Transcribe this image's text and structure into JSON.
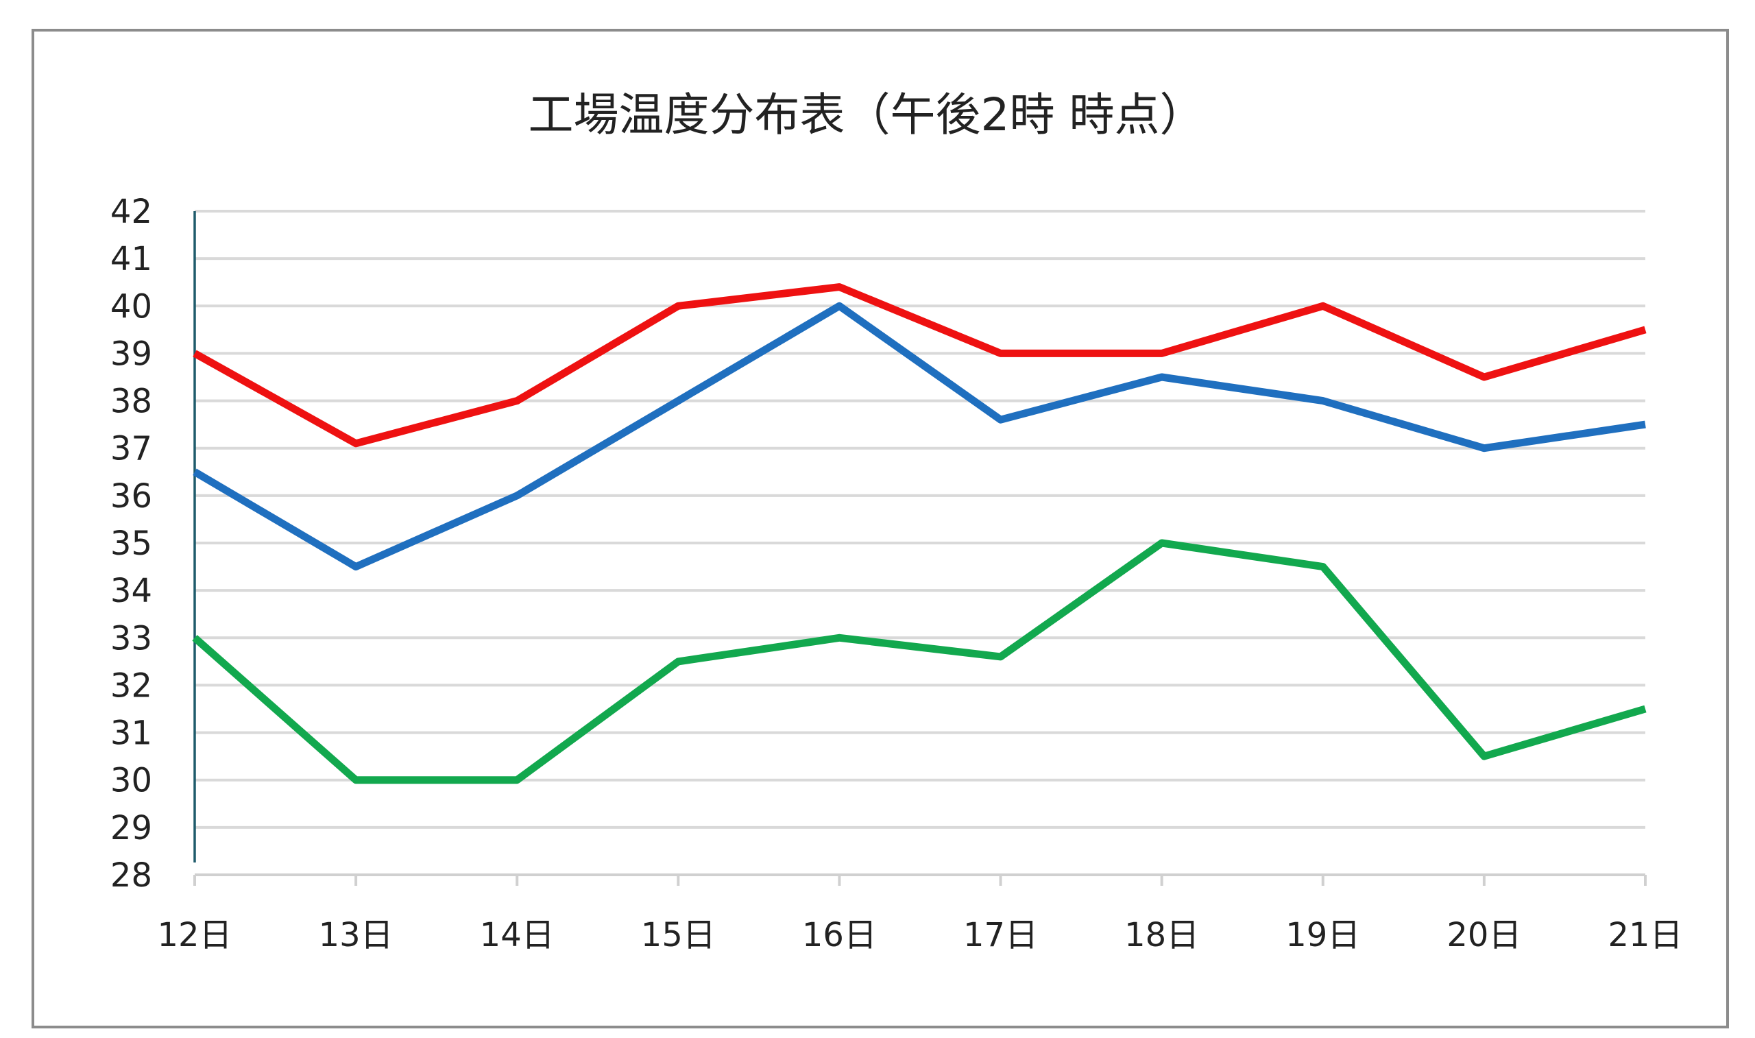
{
  "chart_data": {
    "type": "line",
    "title": "工場温度分布表（午後2時 時点）",
    "xlabel": "",
    "ylabel": "",
    "categories": [
      "12日",
      "13日",
      "14日",
      "15日",
      "16日",
      "17日",
      "18日",
      "19日",
      "20日",
      "21日"
    ],
    "ylim": [
      28,
      42
    ],
    "yticks": [
      "28",
      "29",
      "30",
      "31",
      "32",
      "33",
      "34",
      "35",
      "36",
      "37",
      "38",
      "39",
      "40",
      "41",
      "42"
    ],
    "grid": true,
    "legend": "none",
    "series": [
      {
        "color": "#ee1111",
        "values": [
          39,
          37.1,
          38,
          40,
          40.4,
          39,
          39,
          40,
          38.5,
          39.5
        ]
      },
      {
        "color": "#1f6fbf",
        "values": [
          36.5,
          34.5,
          36,
          38,
          40,
          37.6,
          38.5,
          38,
          37,
          37.5
        ]
      },
      {
        "color": "#12a84e",
        "values": [
          33,
          30,
          30,
          32.5,
          33,
          32.6,
          35,
          34.5,
          30.5,
          31.5
        ]
      }
    ]
  }
}
